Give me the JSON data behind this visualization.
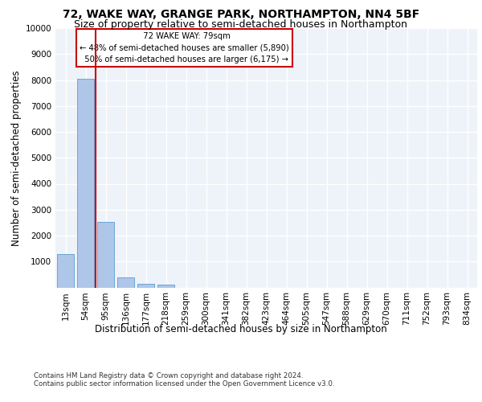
{
  "title": "72, WAKE WAY, GRANGE PARK, NORTHAMPTON, NN4 5BF",
  "subtitle": "Size of property relative to semi-detached houses in Northampton",
  "xlabel_bottom": "Distribution of semi-detached houses by size in Northampton",
  "ylabel": "Number of semi-detached properties",
  "footer_line1": "Contains HM Land Registry data © Crown copyright and database right 2024.",
  "footer_line2": "Contains public sector information licensed under the Open Government Licence v3.0.",
  "property_label": "72 WAKE WAY: 79sqm",
  "pct_smaller": 48,
  "count_smaller": 5890,
  "pct_larger": 50,
  "count_larger": 6175,
  "bar_color": "#aec6e8",
  "bar_edge_color": "#5a9fd4",
  "redline_color": "#cc0000",
  "annotation_box_edge": "#cc0000",
  "categories": [
    "13sqm",
    "54sqm",
    "95sqm",
    "136sqm",
    "177sqm",
    "218sqm",
    "259sqm",
    "300sqm",
    "341sqm",
    "382sqm",
    "423sqm",
    "464sqm",
    "505sqm",
    "547sqm",
    "588sqm",
    "629sqm",
    "670sqm",
    "711sqm",
    "752sqm",
    "793sqm",
    "834sqm"
  ],
  "bar_values": [
    1300,
    8050,
    2520,
    380,
    130,
    100,
    0,
    0,
    0,
    0,
    0,
    0,
    0,
    0,
    0,
    0,
    0,
    0,
    0,
    0,
    0
  ],
  "ylim": [
    0,
    10000
  ],
  "yticks": [
    0,
    1000,
    2000,
    3000,
    4000,
    5000,
    6000,
    7000,
    8000,
    9000,
    10000
  ],
  "redline_x": 1.5,
  "bg_color": "#eef2f9",
  "grid_color": "#ffffff",
  "title_fontsize": 10,
  "subtitle_fontsize": 9,
  "axis_label_fontsize": 8.5,
  "tick_fontsize": 7.5,
  "footer_fontsize": 6.2
}
